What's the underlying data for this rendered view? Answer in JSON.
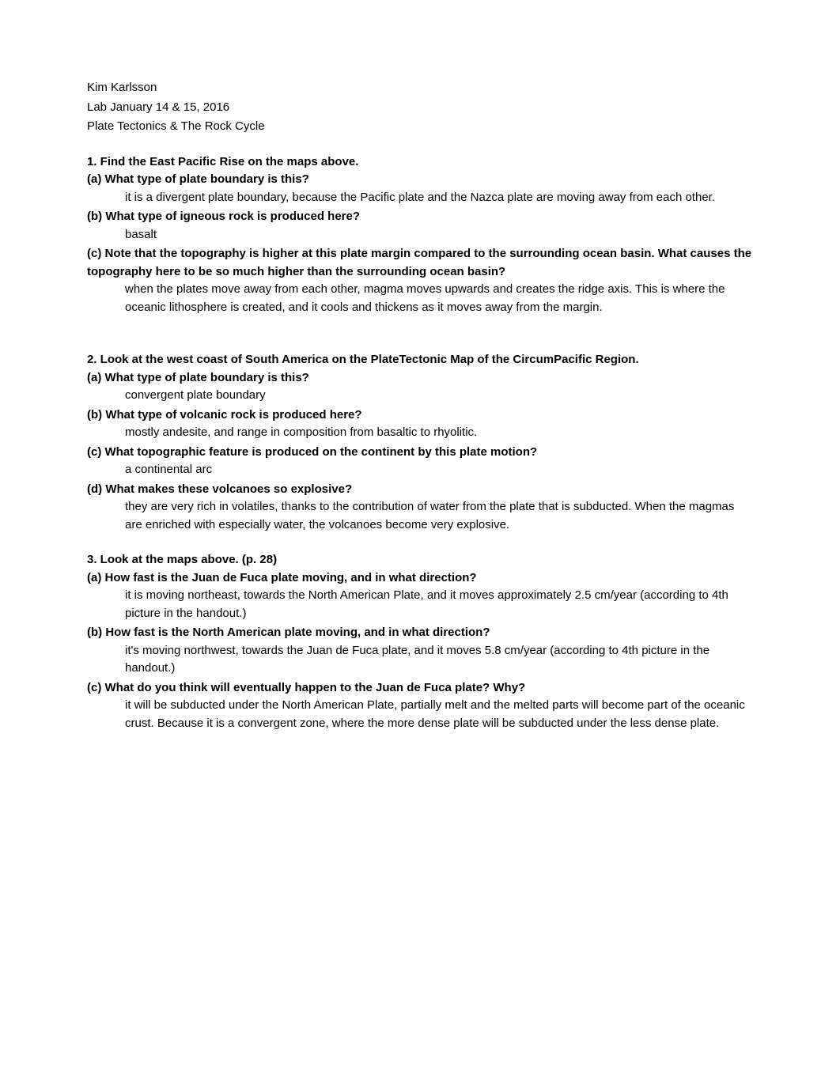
{
  "header": {
    "name": "Kim Karlsson",
    "lab_date": "Lab January 14 & 15, 2016",
    "topic": "Plate Tectonics & The Rock Cycle"
  },
  "q1": {
    "title": "1. Find the East Pacific Rise on the maps above.",
    "a": {
      "question": "(a) What type of plate boundary is this?",
      "answer": "it is a divergent plate boundary, because the Pacific plate and the Nazca plate are moving away from each other."
    },
    "b": {
      "question": "(b) What type of igneous rock is produced here?",
      "answer": "basalt"
    },
    "c": {
      "question": "(c) Note that the topography is higher at this plate margin compared to the surrounding ocean basin. What causes the topography here to be so much higher than the surrounding ocean basin?",
      "answer": "when the plates move away from each other, magma moves upwards and creates the ridge axis. This is where the oceanic lithosphere is created, and it cools and thickens as it moves away from the margin."
    }
  },
  "q2": {
    "title": "2. Look at the west coast of South America on the PlateTectonic Map of the CircumPacific Region.",
    "a": {
      "question": "(a) What type of plate boundary is this?",
      "answer": "convergent plate boundary"
    },
    "b": {
      "question": "(b) What type of volcanic rock is produced here?",
      "answer": "mostly andesite, and range in composition from basaltic to rhyolitic."
    },
    "c": {
      "question": "(c) What topographic feature is produced on the continent by this plate motion?",
      "answer": "a continental arc"
    },
    "d": {
      "question": "(d) What makes these volcanoes so explosive?",
      "answer": "they are very rich in volatiles, thanks to the contribution of water from the plate that is subducted. When the magmas are enriched with especially water, the volcanoes become very explosive."
    }
  },
  "q3": {
    "title": "3. Look at the maps above. (p. 28)",
    "a": {
      "question": "(a) How fast is the Juan de Fuca plate moving, and in what direction?",
      "answer": "it is moving northeast, towards the North American Plate, and it moves approximately 2.5 cm/year (according to 4th picture in the handout.)"
    },
    "b": {
      "question": "(b) How fast is the North American plate moving, and in what direction?",
      "answer": "it's moving northwest, towards the Juan de Fuca plate, and it moves 5.8 cm/year (according to 4th picture in the handout.)"
    },
    "c": {
      "question": "(c) What do you think will eventually happen to the Juan de Fuca plate? Why?",
      "answer": "it will be subducted under the North American Plate, partially melt and the melted parts will become part of the oceanic crust. Because it is a convergent zone, where the more dense plate will be subducted under the less dense plate."
    }
  }
}
